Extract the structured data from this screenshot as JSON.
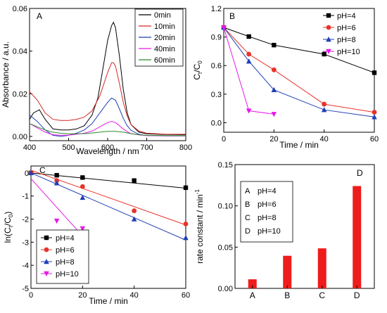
{
  "chart_data": [
    {
      "panel": "A",
      "type": "line",
      "xlabel": "Wavelength / nm",
      "ylabel": "Absorbance / a.u.",
      "xlim": [
        400,
        800
      ],
      "ylim": [
        -0.002,
        0.06
      ],
      "xticks": [
        400,
        500,
        600,
        700,
        800
      ],
      "yticks": [
        0.0,
        0.02,
        0.04,
        0.06
      ],
      "ytick_labels": [
        "0.00",
        "0.02",
        "0.04",
        "0.06"
      ],
      "legend_position": "top-right",
      "series": [
        {
          "name": "0min",
          "color": "#000000",
          "x": [
            400,
            410,
            425,
            440,
            460,
            480,
            500,
            520,
            540,
            560,
            575,
            590,
            600,
            610,
            615,
            620,
            630,
            640,
            650,
            660,
            680,
            700,
            750,
            800
          ],
          "y": [
            0.008,
            0.011,
            0.0125,
            0.008,
            0.0035,
            0.003,
            0.003,
            0.0035,
            0.005,
            0.01,
            0.018,
            0.034,
            0.045,
            0.052,
            0.0535,
            0.051,
            0.038,
            0.022,
            0.011,
            0.0055,
            0.002,
            0.0012,
            0.0009,
            0.0008
          ]
        },
        {
          "name": "10min",
          "color": "#d62728",
          "x": [
            400,
            420,
            440,
            460,
            480,
            500,
            520,
            540,
            560,
            580,
            600,
            610,
            615,
            620,
            630,
            640,
            650,
            660,
            680,
            700,
            750,
            800
          ],
          "y": [
            0.021,
            0.017,
            0.011,
            0.008,
            0.0075,
            0.0075,
            0.008,
            0.009,
            0.012,
            0.019,
            0.03,
            0.0345,
            0.0345,
            0.033,
            0.025,
            0.016,
            0.0095,
            0.0055,
            0.0025,
            0.0015,
            0.001,
            0.001
          ]
        },
        {
          "name": "20min",
          "color": "#1f3fb4",
          "x": [
            400,
            420,
            440,
            460,
            480,
            500,
            520,
            540,
            560,
            580,
            600,
            610,
            620,
            630,
            640,
            650,
            660,
            680,
            700,
            750,
            800
          ],
          "y": [
            0.01,
            0.007,
            0.003,
            0.0005,
            0.0,
            0.0005,
            0.0015,
            0.003,
            0.006,
            0.011,
            0.016,
            0.018,
            0.017,
            0.013,
            0.0085,
            0.005,
            0.0028,
            0.001,
            0.0004,
            0.0002,
            0.0002
          ]
        },
        {
          "name": "40min",
          "color": "#e619e6",
          "x": [
            400,
            420,
            440,
            460,
            480,
            500,
            520,
            540,
            560,
            580,
            600,
            610,
            620,
            630,
            640,
            650,
            660,
            680,
            700,
            750,
            800
          ],
          "y": [
            0.006,
            0.004,
            0.002,
            0.0008,
            0.0005,
            0.0006,
            0.001,
            0.0015,
            0.0025,
            0.0045,
            0.0065,
            0.007,
            0.0065,
            0.005,
            0.0035,
            0.0022,
            0.0013,
            0.0007,
            0.0004,
            0.0003,
            0.0003
          ]
        },
        {
          "name": "60min",
          "color": "#2a8a2a",
          "x": [
            400,
            420,
            440,
            460,
            480,
            500,
            520,
            540,
            560,
            580,
            600,
            620,
            640,
            660,
            680,
            700,
            750,
            800
          ],
          "y": [
            0.006,
            0.0045,
            0.003,
            0.002,
            0.0015,
            0.0012,
            0.0012,
            0.0013,
            0.0016,
            0.002,
            0.0024,
            0.0024,
            0.002,
            0.0013,
            0.0008,
            0.0005,
            0.0004,
            0.0004
          ]
        }
      ]
    },
    {
      "panel": "B",
      "type": "line",
      "xlabel": "Time / min",
      "ylabel_main": "C",
      "ylabel_sub1": "t",
      "ylabel_mid": "/C",
      "ylabel_sub2": "0",
      "xlim": [
        0,
        60
      ],
      "ylim": [
        -0.1,
        1.2
      ],
      "xticks": [
        0,
        20,
        40,
        60
      ],
      "yticks": [
        0.0,
        0.3,
        0.6,
        0.9,
        1.2
      ],
      "ytick_labels": [
        "0.0",
        "0.3",
        "0.6",
        "0.9",
        "1.2"
      ],
      "legend_position": "top-right",
      "series": [
        {
          "name": "pH=4",
          "color": "#000000",
          "marker": "square",
          "x": [
            0,
            10,
            20,
            40,
            60
          ],
          "y": [
            1.0,
            0.905,
            0.815,
            0.72,
            0.525
          ]
        },
        {
          "name": "pH=6",
          "color": "#e8332a",
          "marker": "circle",
          "x": [
            0,
            10,
            20,
            40,
            60
          ],
          "y": [
            1.0,
            0.72,
            0.555,
            0.195,
            0.11
          ]
        },
        {
          "name": "pH=8",
          "color": "#1f3fb4",
          "marker": "triangle-up",
          "x": [
            0,
            10,
            20,
            40,
            60
          ],
          "y": [
            1.0,
            0.645,
            0.345,
            0.135,
            0.06
          ]
        },
        {
          "name": "pH=10",
          "color": "#e619e6",
          "marker": "triangle-down",
          "x": [
            0,
            10,
            20
          ],
          "y": [
            1.0,
            0.125,
            0.09
          ]
        }
      ]
    },
    {
      "panel": "C",
      "type": "scatter",
      "xlabel": "Time / min",
      "ylabel_main": "ln(C",
      "ylabel_sub1": "t",
      "ylabel_mid": "/C",
      "ylabel_sub2": "0",
      "ylabel_tail": ")",
      "xlim": [
        0,
        60
      ],
      "ylim": [
        -5,
        0.3
      ],
      "xticks": [
        0,
        20,
        40,
        60
      ],
      "yticks": [
        0,
        -1,
        -2,
        -3,
        -4,
        -5
      ],
      "ytick_labels": [
        "0",
        "-1",
        "-2",
        "-3",
        "-4",
        "-5"
      ],
      "legend_position": "bottom-left",
      "series": [
        {
          "name": "pH=4",
          "color": "#000000",
          "marker": "square",
          "x": [
            0,
            10,
            20,
            40,
            60
          ],
          "y": [
            0,
            -0.1,
            -0.2,
            -0.33,
            -0.64
          ],
          "fit": [
            0,
            -0.011
          ]
        },
        {
          "name": "pH=6",
          "color": "#e8332a",
          "marker": "circle",
          "x": [
            0,
            10,
            20,
            40,
            60
          ],
          "y": [
            0,
            -0.33,
            -0.59,
            -1.64,
            -2.21
          ],
          "fit": [
            0.12,
            -0.0395
          ]
        },
        {
          "name": "pH=8",
          "color": "#1f3fb4",
          "marker": "triangle-up",
          "x": [
            0,
            10,
            20,
            40,
            60
          ],
          "y": [
            0,
            -0.44,
            -1.07,
            -2.0,
            -2.81
          ],
          "fit": [
            0.0,
            -0.0485
          ]
        },
        {
          "name": "pH=10",
          "color": "#e619e6",
          "marker": "triangle-down",
          "x": [
            10,
            20
          ],
          "y": [
            -2.08,
            -2.41
          ],
          "fit": [
            -0.25,
            -0.124
          ],
          "fit_xmax": 21.5
        }
      ]
    },
    {
      "panel": "D",
      "type": "bar",
      "ylabel_main": "rate constant / min",
      "ylabel_sup": "-1",
      "categories": [
        "A",
        "B",
        "C",
        "D"
      ],
      "values": [
        0.011,
        0.0395,
        0.0485,
        0.124
      ],
      "ylim": [
        0,
        0.15
      ],
      "yticks": [
        0.0,
        0.05,
        0.1,
        0.15
      ],
      "ytick_labels": [
        "0.00",
        "0.05",
        "0.10",
        "0.15"
      ],
      "bar_color": "#ee1c1c",
      "legend_position": "top-left",
      "legend_items": [
        {
          "key": "A",
          "label": "pH=4"
        },
        {
          "key": "B",
          "label": "pH=6"
        },
        {
          "key": "C",
          "label": "pH=8"
        },
        {
          "key": "D",
          "label": "pH=10"
        }
      ]
    }
  ]
}
